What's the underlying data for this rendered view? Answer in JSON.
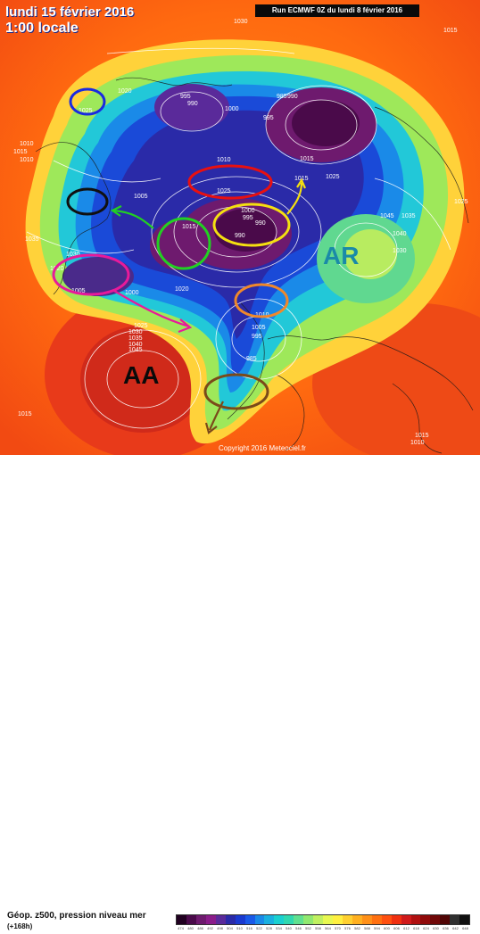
{
  "header": {
    "date_line": "lundi 15 février 2016",
    "time_line": "1:00 locale",
    "run_label": "Run ECMWF 0Z du lundi 8 février 2016"
  },
  "annotations": {
    "anticyclone_atlantic": "AA",
    "anticyclone_russia": "AR"
  },
  "footer": {
    "copyright": "Copyright 2016 Meteociel.fr",
    "legend_title": "Géop. z500, pression niveau mer",
    "legend_subtitle": "(+168h)"
  },
  "legend_scale": {
    "colors": [
      "#200020",
      "#4a0a4a",
      "#6e1a6e",
      "#8a1c8a",
      "#5a2a9a",
      "#2a2aa8",
      "#1a3ad0",
      "#1a5ae8",
      "#1a8ae8",
      "#1ab0e0",
      "#1ad0d0",
      "#30d8b0",
      "#60e090",
      "#90e870",
      "#c0f060",
      "#e8f850",
      "#fff040",
      "#ffd030",
      "#ffb020",
      "#ff9018",
      "#ff7010",
      "#ff5010",
      "#f03010",
      "#d01a1a",
      "#b01010",
      "#900a0a",
      "#700808",
      "#500505",
      "#303030",
      "#101010"
    ],
    "ticks": [
      "474",
      "480",
      "486",
      "492",
      "498",
      "504",
      "510",
      "516",
      "522",
      "528",
      "534",
      "540",
      "546",
      "552",
      "558",
      "564",
      "570",
      "576",
      "582",
      "588",
      "594",
      "600",
      "606",
      "612",
      "618",
      "624",
      "630",
      "636",
      "642",
      "648"
    ]
  },
  "isobars": [
    {
      "label": "1030",
      "pos": "top"
    },
    {
      "label": "1015",
      "pos": "top-right"
    },
    {
      "label": "1025",
      "pos": "blue-circle"
    },
    {
      "label": "1020",
      "pos": "canada"
    },
    {
      "label": "995",
      "pos": "greenland"
    },
    {
      "label": "990",
      "pos": "greenland"
    },
    {
      "label": "1000",
      "pos": "arctic"
    },
    {
      "label": "985",
      "pos": "siberia"
    },
    {
      "label": "990",
      "pos": "siberia"
    },
    {
      "label": "995",
      "pos": "siberia"
    },
    {
      "label": "1015",
      "pos": "siberia"
    },
    {
      "label": "1015",
      "pos": "yellow-arrow"
    },
    {
      "label": "1010",
      "pos": "red-oval"
    },
    {
      "label": "1025",
      "pos": "red-oval"
    },
    {
      "label": "1000",
      "pos": "yellow-oval"
    },
    {
      "label": "995",
      "pos": "yellow-oval"
    },
    {
      "label": "990",
      "pos": "yellow-oval"
    },
    {
      "label": "990",
      "pos": "yellow-oval"
    },
    {
      "label": "1015",
      "pos": "green-circle"
    },
    {
      "label": "1005",
      "pos": "black-oval"
    },
    {
      "label": "1035",
      "pos": "west"
    },
    {
      "label": "1030",
      "pos": "west"
    },
    {
      "label": "1020",
      "pos": "magenta-oval"
    },
    {
      "label": "1005",
      "pos": "magenta-oval"
    },
    {
      "label": "1000",
      "pos": "magenta-oval"
    },
    {
      "label": "1020",
      "pos": "center"
    },
    {
      "label": "1010",
      "pos": "orange-oval"
    },
    {
      "label": "1005",
      "pos": "orange-oval"
    },
    {
      "label": "995",
      "pos": "europe"
    },
    {
      "label": "985",
      "pos": "europe"
    },
    {
      "label": "1025",
      "pos": "russia"
    },
    {
      "label": "1045",
      "pos": "russia"
    },
    {
      "label": "1035",
      "pos": "russia"
    },
    {
      "label": "1040",
      "pos": "russia"
    },
    {
      "label": "1030",
      "pos": "russia"
    },
    {
      "label": "1025",
      "pos": "east"
    },
    {
      "label": "1045",
      "pos": "atlantic"
    },
    {
      "label": "1040",
      "pos": "atlantic"
    },
    {
      "label": "1035",
      "pos": "atlantic"
    },
    {
      "label": "1030",
      "pos": "atlantic"
    },
    {
      "label": "1025",
      "pos": "atlantic"
    },
    {
      "label": "1015",
      "pos": "bottom-left"
    },
    {
      "label": "1015",
      "pos": "bottom-right"
    },
    {
      "label": "1010",
      "pos": "bottom-right"
    },
    {
      "label": "1010",
      "pos": "left"
    },
    {
      "label": "1015",
      "pos": "left"
    },
    {
      "label": "1010",
      "pos": "left"
    }
  ]
}
